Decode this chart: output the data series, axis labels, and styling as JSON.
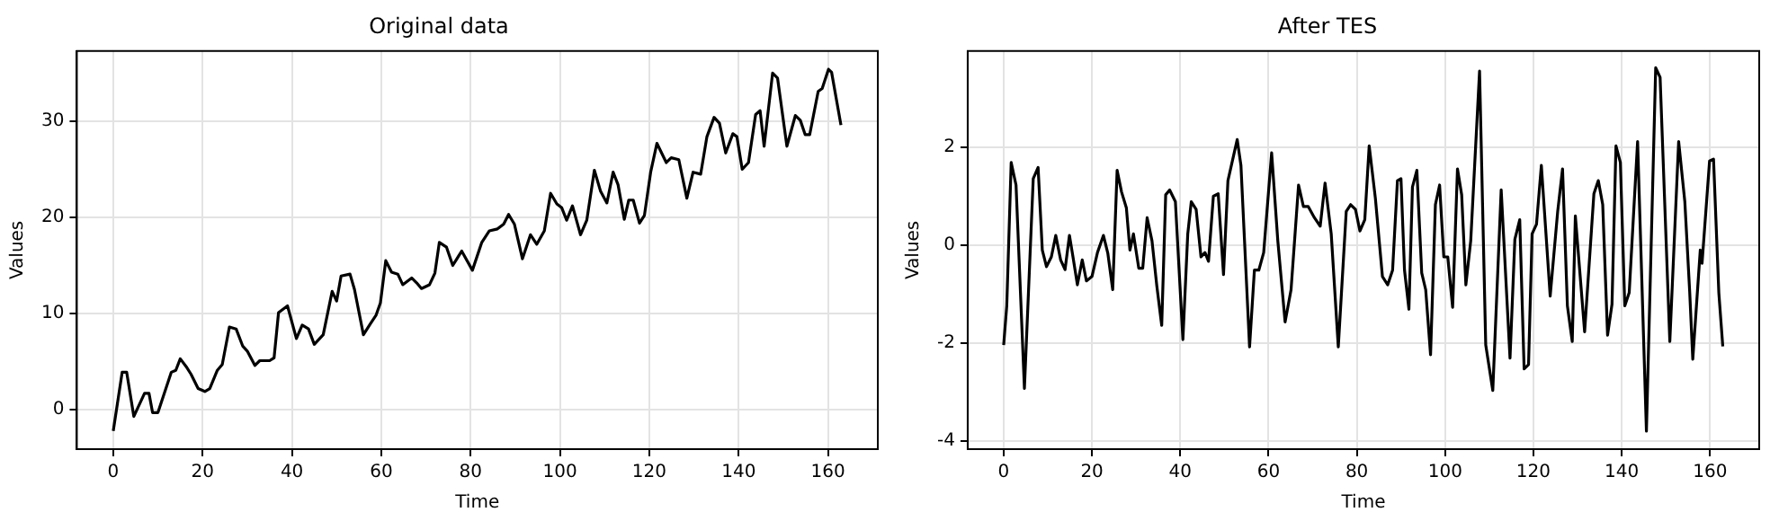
{
  "chart_data": [
    {
      "type": "line",
      "title": "Original data",
      "xlabel": "Time",
      "ylabel": "Values",
      "xlim": [
        -8.15,
        171.15
      ],
      "ylim": [
        -4.1,
        37.3
      ],
      "xticks": [
        0,
        20,
        40,
        60,
        80,
        100,
        120,
        140,
        160
      ],
      "yticks": [
        0,
        10,
        20,
        30
      ],
      "grid": true,
      "series": [
        {
          "color": "#000000",
          "x": [
            0,
            2,
            3,
            4.6,
            7,
            8,
            8.8,
            10,
            13,
            14,
            15,
            16.3,
            17.4,
            19,
            20.5,
            21.6,
            23.3,
            24.4,
            26,
            27.5,
            29,
            30,
            31.7,
            32.8,
            35,
            36,
            37,
            39,
            41,
            42.3,
            43.7,
            45,
            47,
            49,
            50,
            51,
            53,
            54,
            56,
            57.5,
            58.8,
            59.8,
            61,
            62.3,
            63.7,
            64.8,
            66.8,
            67.9,
            69,
            70.8,
            72,
            73,
            74.6,
            76,
            78,
            80.4,
            82.5,
            84.2,
            86,
            87.4,
            88.5,
            89.8,
            91.6,
            93.4,
            94.8,
            96.5,
            97.9,
            99.3,
            100.4,
            101.5,
            102.8,
            104.6,
            106,
            107.7,
            109.1,
            110.5,
            111.9,
            113,
            114.4,
            115.4,
            116.4,
            117.8,
            118.9,
            120.3,
            121.7,
            123.8,
            124.9,
            126.6,
            128.4,
            129.8,
            131.5,
            132.9,
            134.5,
            135.7,
            137.1,
            138.7,
            139.6,
            140.8,
            142.2,
            143.8,
            144.8,
            145.7,
            147.6,
            148.7,
            150.8,
            152.7,
            153.8,
            154.9,
            155.9,
            157.8,
            158.7,
            160.1,
            160.8,
            162.9
          ],
          "values": [
            -2.2,
            3.9,
            3.9,
            -0.7,
            1.7,
            1.7,
            -0.3,
            -0.3,
            3.9,
            4.1,
            5.3,
            4.5,
            3.7,
            2.2,
            1.9,
            2.2,
            4.1,
            4.7,
            8.6,
            8.4,
            6.6,
            6.1,
            4.6,
            5.1,
            5.1,
            5.4,
            10.1,
            10.8,
            7.4,
            8.8,
            8.4,
            6.8,
            7.8,
            12.3,
            11.3,
            13.9,
            14.1,
            12.5,
            7.8,
            8.9,
            9.8,
            11.1,
            15.5,
            14.3,
            14.1,
            13.0,
            13.7,
            13.2,
            12.6,
            13.0,
            14.2,
            17.4,
            16.9,
            15.0,
            16.5,
            14.5,
            17.4,
            18.6,
            18.8,
            19.3,
            20.3,
            19.3,
            15.7,
            18.2,
            17.2,
            18.6,
            22.5,
            21.4,
            21.0,
            19.7,
            21.2,
            18.2,
            19.7,
            24.9,
            22.7,
            21.5,
            24.7,
            23.4,
            19.8,
            21.8,
            21.8,
            19.4,
            20.2,
            24.7,
            27.7,
            25.7,
            26.2,
            26.0,
            22.0,
            24.7,
            24.5,
            28.4,
            30.4,
            29.8,
            26.7,
            28.7,
            28.4,
            25.0,
            25.7,
            30.7,
            31.1,
            27.4,
            35.0,
            34.5,
            27.4,
            30.6,
            30.1,
            28.6,
            28.6,
            33.1,
            33.4,
            35.4,
            35.1,
            29.6
          ]
        }
      ]
    },
    {
      "type": "line",
      "title": "After TES",
      "xlabel": "Time",
      "ylabel": "Values",
      "xlim": [
        -8.15,
        171.15
      ],
      "ylim": [
        -4.17,
        3.97
      ],
      "xticks": [
        0,
        20,
        40,
        60,
        80,
        100,
        120,
        140,
        160
      ],
      "yticks": [
        -4,
        -2,
        0,
        2
      ],
      "grid": true,
      "series": [
        {
          "color": "#000000",
          "x": [
            0,
            0.7,
            1.7,
            2.8,
            4.7,
            6.7,
            7.8,
            8.75,
            9.7,
            10.8,
            11.8,
            12.9,
            13.9,
            14.9,
            15.7,
            16.7,
            17.8,
            18.75,
            20,
            21.25,
            22.6,
            23.6,
            24.7,
            25.7,
            26.7,
            27.8,
            28.6,
            29.4,
            30.6,
            31.5,
            32.5,
            33.6,
            34.7,
            35.8,
            36.7,
            37.6,
            38.9,
            40.6,
            41.7,
            42.5,
            43.6,
            44.7,
            45.6,
            46.4,
            47.5,
            48.6,
            49.8,
            50.8,
            52.9,
            53.75,
            55.7,
            56.8,
            57.8,
            58.9,
            60.7,
            62.1,
            63.75,
            65.1,
            66.8,
            67.9,
            69,
            70.4,
            71.7,
            72.8,
            74.2,
            75.8,
            77.6,
            78.6,
            79.7,
            80.7,
            81.8,
            82.8,
            84.2,
            85.8,
            87,
            88.1,
            89.2,
            90,
            90.8,
            91.8,
            92.6,
            93.6,
            94.7,
            95.6,
            96.7,
            97.8,
            98.75,
            99.7,
            100.6,
            101.7,
            102.8,
            103.75,
            104.7,
            105.8,
            107.8,
            109.2,
            110.8,
            112.7,
            114.7,
            115.8,
            116.9,
            117.9,
            118.9,
            119.7,
            120.7,
            121.8,
            123.8,
            125.5,
            126.6,
            127.7,
            128.8,
            129.5,
            131.6,
            133.7,
            134.7,
            135.7,
            136.8,
            137.8,
            138.7,
            139.7,
            140.7,
            141.7,
            143.6,
            145.6,
            147.7,
            148.7,
            150.9,
            152.9,
            154.3,
            155.4,
            156.1,
            157.8,
            158.2,
            159.9,
            160.8,
            162,
            162.9
          ],
          "values": [
            -2.04,
            -1.24,
            1.69,
            1.23,
            -2.93,
            1.36,
            1.59,
            -0.1,
            -0.44,
            -0.24,
            0.2,
            -0.3,
            -0.5,
            0.2,
            -0.24,
            -0.81,
            -0.3,
            -0.73,
            -0.64,
            -0.15,
            0.2,
            -0.17,
            -0.91,
            1.53,
            1.09,
            0.76,
            -0.1,
            0.23,
            -0.47,
            -0.47,
            0.56,
            0.09,
            -0.84,
            -1.64,
            1.03,
            1.13,
            0.89,
            -1.93,
            0.23,
            0.89,
            0.73,
            -0.24,
            -0.15,
            -0.33,
            1.0,
            1.05,
            -0.6,
            1.32,
            2.16,
            1.63,
            -2.08,
            -0.51,
            -0.51,
            -0.15,
            1.89,
            0.09,
            -1.57,
            -0.91,
            1.23,
            0.79,
            0.79,
            0.56,
            0.39,
            1.27,
            0.23,
            -2.08,
            0.69,
            0.83,
            0.73,
            0.29,
            0.52,
            2.03,
            0.96,
            -0.64,
            -0.81,
            -0.51,
            1.32,
            1.36,
            -0.51,
            -1.31,
            1.19,
            1.53,
            -0.57,
            -0.91,
            -2.24,
            0.83,
            1.23,
            -0.24,
            -0.24,
            -1.27,
            1.56,
            1.03,
            -0.81,
            0.09,
            3.56,
            -2.04,
            -2.97,
            1.13,
            -2.31,
            0.12,
            0.52,
            -2.53,
            -2.44,
            0.23,
            0.43,
            1.63,
            -1.04,
            0.69,
            1.56,
            -1.24,
            -1.97,
            0.6,
            -1.77,
            1.05,
            1.32,
            0.83,
            -1.84,
            -1.21,
            2.03,
            1.69,
            -1.24,
            -0.97,
            2.12,
            -3.8,
            3.63,
            3.43,
            -1.97,
            2.12,
            0.89,
            -0.95,
            -2.33,
            -0.1,
            -0.37,
            1.72,
            1.76,
            -0.97,
            -2.07
          ]
        }
      ]
    }
  ]
}
